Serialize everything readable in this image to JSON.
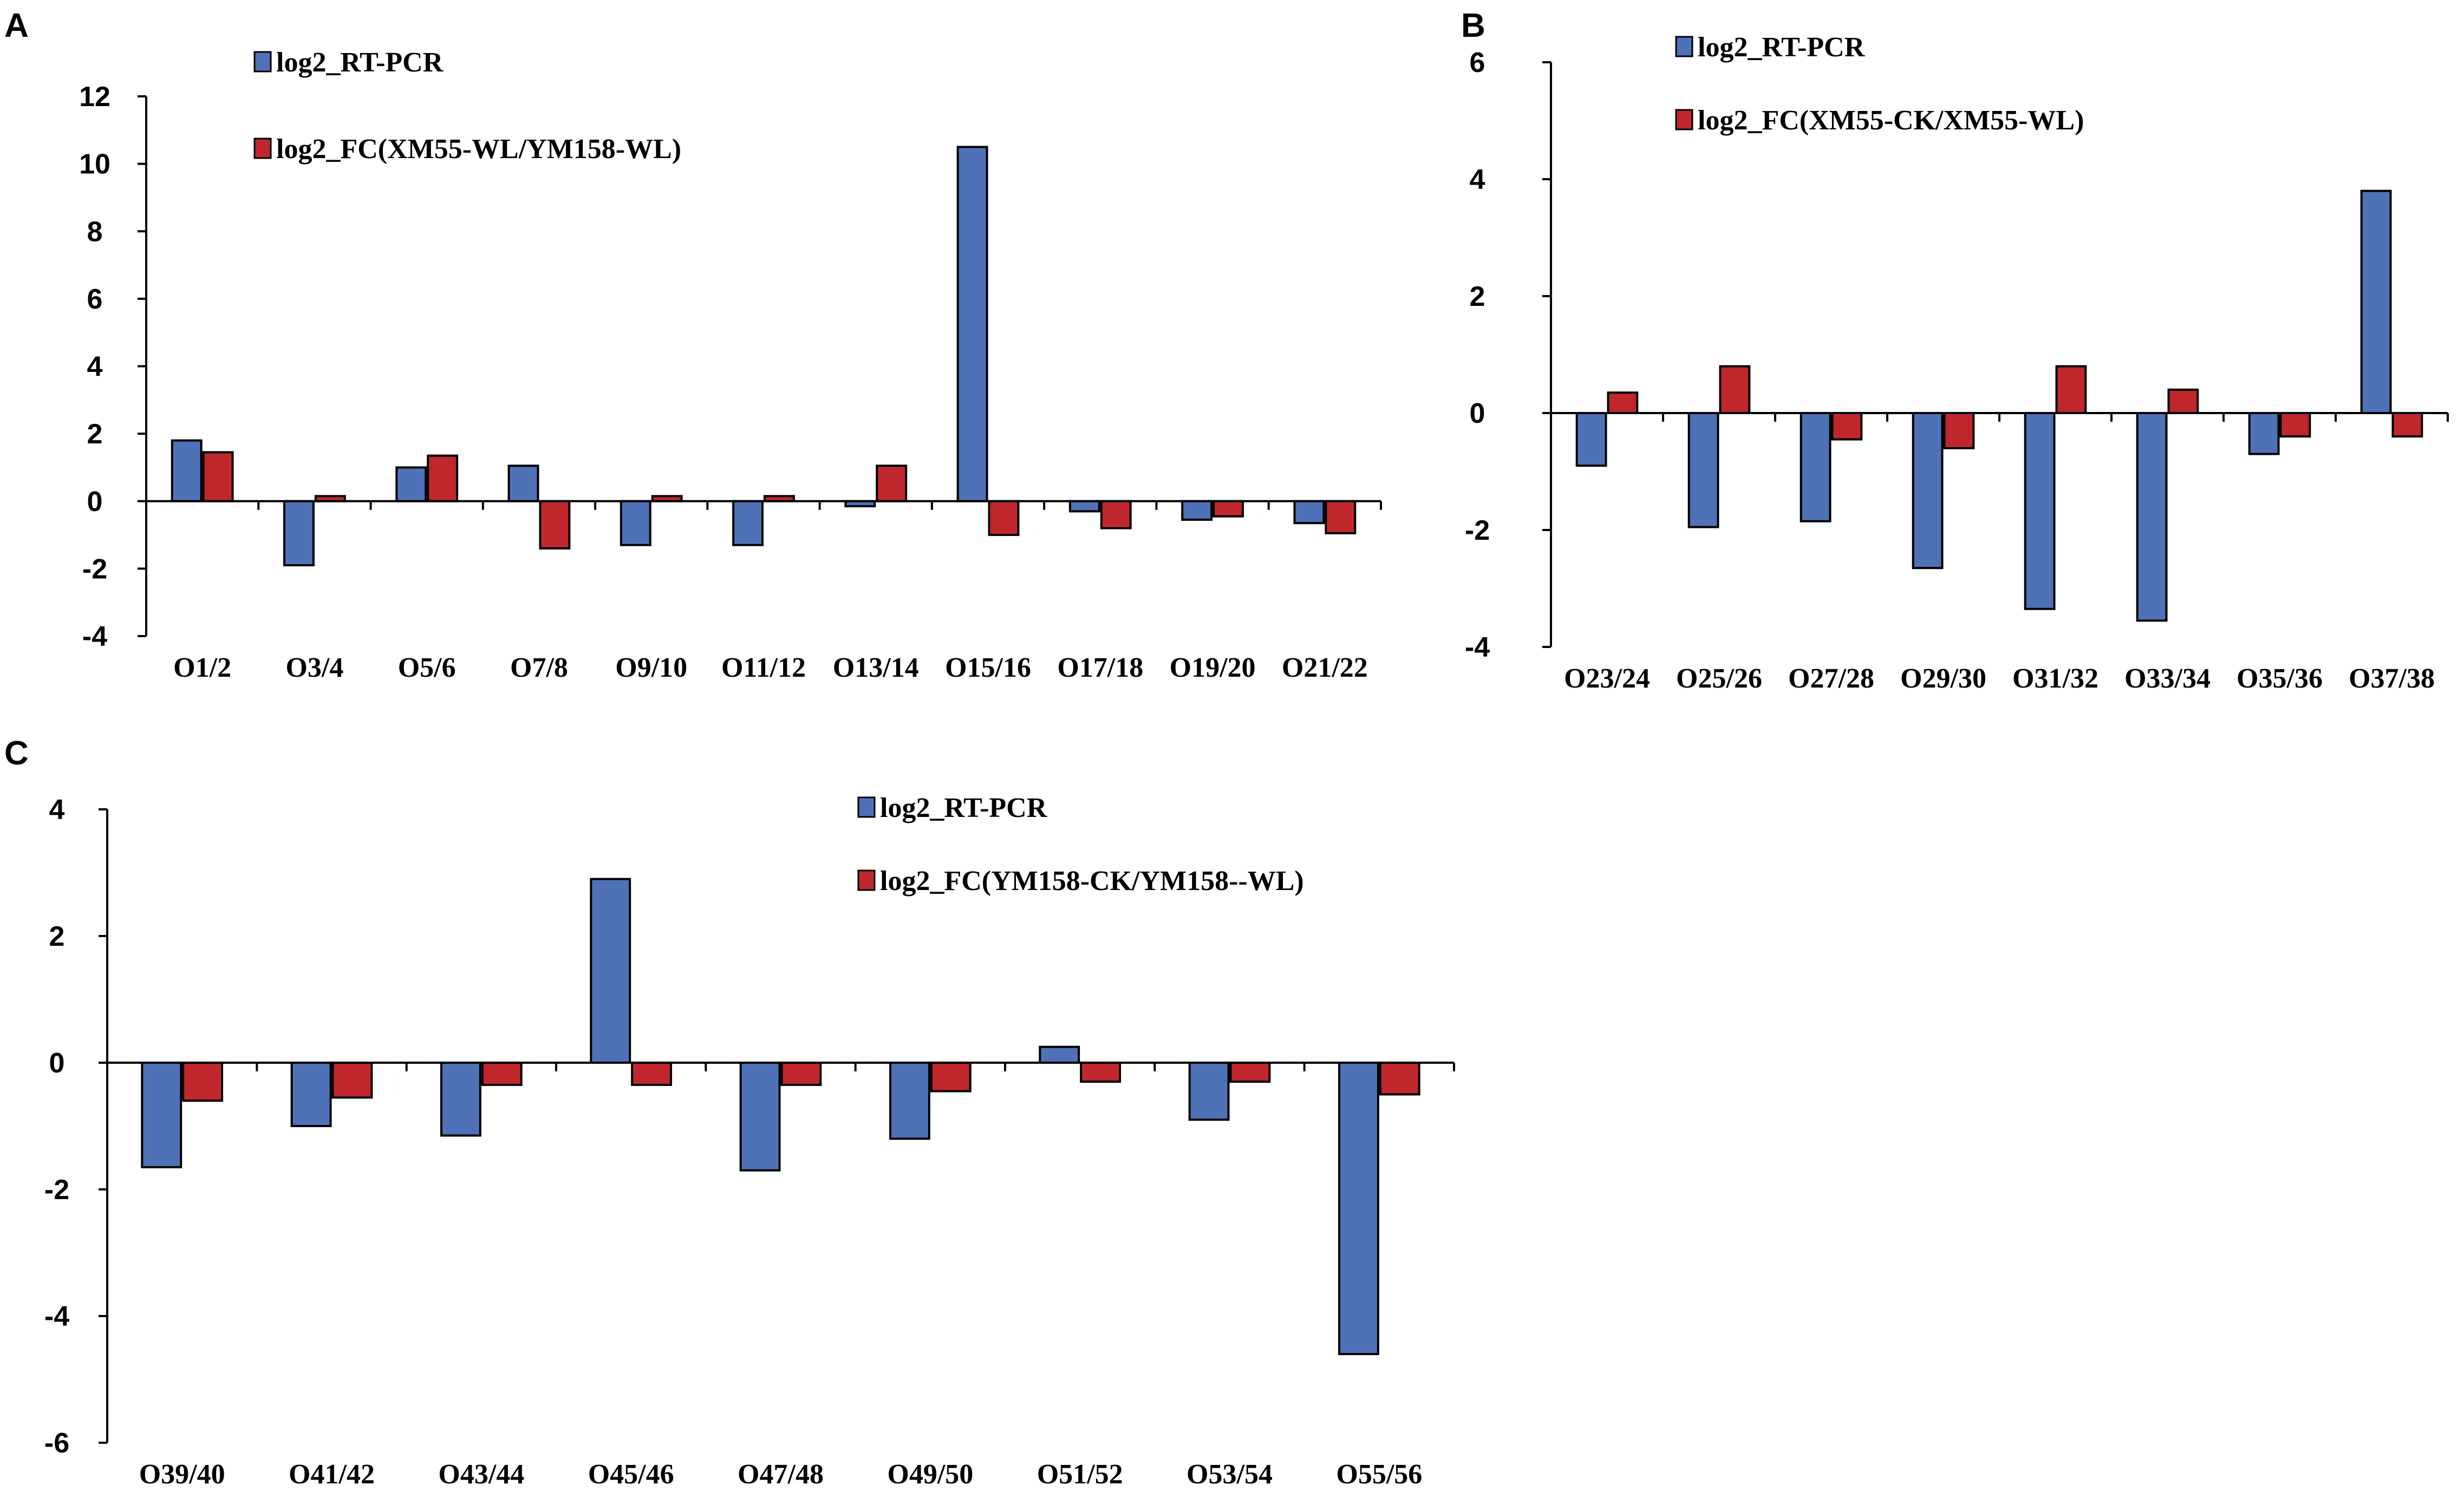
{
  "colors": {
    "rt_pcr": "#4f71b8",
    "fc": "#c0272d"
  },
  "chart_data": [
    {
      "panel": "A",
      "type": "bar",
      "categories": [
        "O1/2",
        "O3/4",
        "O5/6",
        "O7/8",
        "O9/10",
        "O11/12",
        "O13/14",
        "O15/16",
        "O17/18",
        "O19/20",
        "O21/22"
      ],
      "series": [
        {
          "name": "log2_RT-PCR",
          "values": [
            1.8,
            -1.9,
            1.0,
            1.05,
            -1.3,
            -1.3,
            -0.15,
            10.5,
            -0.3,
            -0.55,
            -0.65
          ]
        },
        {
          "name": "log2_FC(XM55-WL/YM158-WL)",
          "values": [
            1.45,
            0.15,
            1.35,
            -1.4,
            0.15,
            0.15,
            1.05,
            -1.0,
            -0.8,
            -0.45,
            -0.95
          ]
        }
      ],
      "ylim": [
        -4,
        12
      ],
      "yticks": [
        "-4",
        "-2",
        "0",
        "2",
        "4",
        "6",
        "8",
        "10",
        "12"
      ],
      "ytick_values": [
        -4,
        -2,
        0,
        2,
        4,
        6,
        8,
        10,
        12
      ],
      "xlabel": "",
      "ylabel": "",
      "legend": "top-left"
    },
    {
      "panel": "B",
      "type": "bar",
      "categories": [
        "O23/24",
        "O25/26",
        "O27/28",
        "O29/30",
        "O31/32",
        "O33/34",
        "O35/36",
        "O37/38"
      ],
      "series": [
        {
          "name": "log2_RT-PCR",
          "values": [
            -0.9,
            -1.95,
            -1.85,
            -2.65,
            -3.35,
            -3.55,
            -0.7,
            3.8
          ]
        },
        {
          "name": "log2_FC(XM55-CK/XM55-WL)",
          "values": [
            0.35,
            0.8,
            -0.45,
            -0.6,
            0.8,
            0.4,
            -0.4,
            -0.4
          ]
        }
      ],
      "ylim": [
        -4,
        6
      ],
      "yticks": [
        "-4",
        "-2",
        "0",
        "2",
        "4",
        "6"
      ],
      "ytick_values": [
        -4,
        -2,
        0,
        2,
        4,
        6
      ],
      "xlabel": "",
      "ylabel": "",
      "legend": "top-left"
    },
    {
      "panel": "C",
      "type": "bar",
      "categories": [
        "O39/40",
        "O41/42",
        "O43/44",
        "O45/46",
        "O47/48",
        "O49/50",
        "O51/52",
        "O53/54",
        "O55/56"
      ],
      "series": [
        {
          "name": "log2_RT-PCR",
          "values": [
            -1.65,
            -1.0,
            -1.15,
            2.9,
            -1.7,
            -1.2,
            0.25,
            -0.9,
            -4.6
          ]
        },
        {
          "name": "log2_FC(YM158-CK/YM158--WL)",
          "values": [
            -0.6,
            -0.55,
            -0.35,
            -0.35,
            -0.35,
            -0.45,
            -0.3,
            -0.3,
            -0.5
          ]
        }
      ],
      "ylim": [
        -6,
        4
      ],
      "yticks": [
        "-6",
        "-4",
        "-2",
        "0",
        "2",
        "4"
      ],
      "ytick_values": [
        -6,
        -4,
        -2,
        0,
        2,
        4
      ],
      "xlabel": "",
      "ylabel": "",
      "legend": "top-center"
    }
  ]
}
